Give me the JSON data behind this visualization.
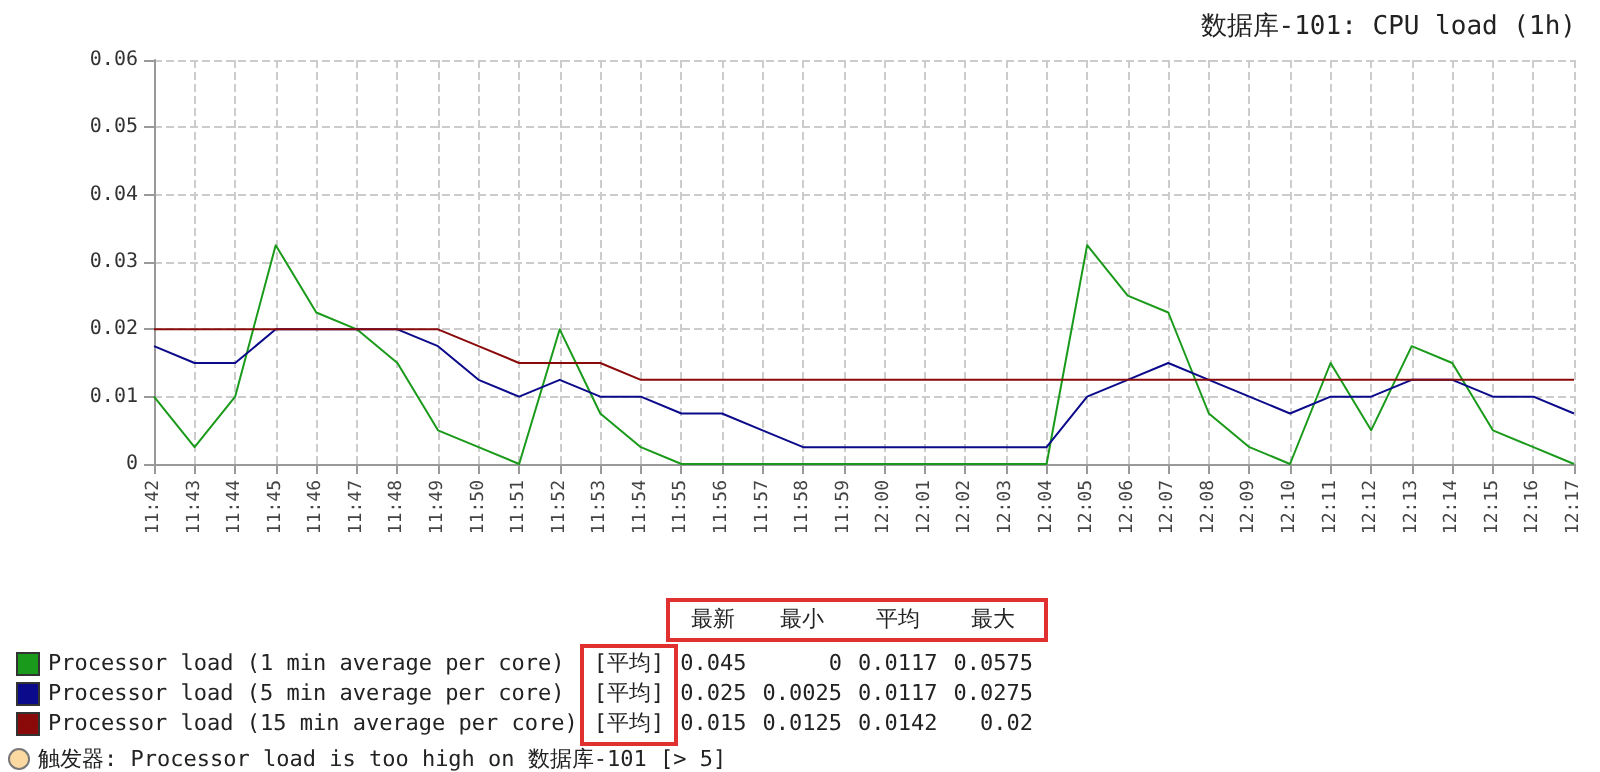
{
  "chart_data": {
    "type": "line",
    "title": "数据库-101: CPU load (1h)",
    "categories": [
      "11:42",
      "11:43",
      "11:44",
      "11:45",
      "11:46",
      "11:47",
      "11:48",
      "11:49",
      "11:50",
      "11:51",
      "11:52",
      "11:53",
      "11:54",
      "11:55",
      "11:56",
      "11:57",
      "11:58",
      "11:59",
      "12:00",
      "12:01",
      "12:02",
      "12:03",
      "12:04",
      "12:05",
      "12:06",
      "12:07",
      "12:08",
      "12:09",
      "12:10",
      "12:11",
      "12:12",
      "12:13",
      "12:14",
      "12:15",
      "12:16",
      "12:17"
    ],
    "series": [
      {
        "name": "Processor load (1 min average per core)",
        "color": "#1a9a1a",
        "values": [
          0.01,
          0.0025,
          0.01,
          0.0325,
          0.0225,
          0.02,
          0.015,
          0.005,
          0.0025,
          0,
          0.02,
          0.0075,
          0.0025,
          0,
          0,
          0,
          0,
          0,
          0,
          0,
          0,
          0,
          0,
          0.0325,
          0.025,
          0.0225,
          0.0075,
          0.0025,
          0,
          0.015,
          0.005,
          0.0175,
          0.015,
          0.005,
          0.0025,
          0
        ]
      },
      {
        "name": "Processor load (5 min average per core)",
        "color": "#0a0a8a",
        "values": [
          0.0175,
          0.015,
          0.015,
          0.02,
          0.02,
          0.02,
          0.02,
          0.0175,
          0.0125,
          0.01,
          0.0125,
          0.01,
          0.01,
          0.0075,
          0.0075,
          0.005,
          0.0025,
          0.0025,
          0.0025,
          0.0025,
          0.0025,
          0.0025,
          0.0025,
          0.01,
          0.0125,
          0.015,
          0.0125,
          0.01,
          0.0075,
          0.01,
          0.01,
          0.0125,
          0.0125,
          0.01,
          0.01,
          0.0075
        ]
      },
      {
        "name": "Processor load (15 min average per core)",
        "color": "#8a0a0a",
        "values": [
          0.02,
          0.02,
          0.02,
          0.02,
          0.02,
          0.02,
          0.02,
          0.02,
          0.0175,
          0.015,
          0.015,
          0.015,
          0.0125,
          0.0125,
          0.0125,
          0.0125,
          0.0125,
          0.0125,
          0.0125,
          0.0125,
          0.0125,
          0.0125,
          0.0125,
          0.0125,
          0.0125,
          0.0125,
          0.0125,
          0.0125,
          0.0125,
          0.0125,
          0.0125,
          0.0125,
          0.0125,
          0.0125,
          0.0125,
          0.0125
        ]
      }
    ],
    "ylim": [
      0,
      0.06
    ],
    "yticks": [
      0,
      0.01,
      0.02,
      0.03,
      0.04,
      0.05,
      0.06
    ],
    "grid": true,
    "legend": "bottom",
    "marker": "none",
    "line_style": "solid",
    "annotations": [
      "最新",
      "最小",
      "平均",
      "最大",
      "[平均]",
      "0.045",
      "0",
      "0.0117",
      "0.0575",
      "[平均]",
      "0.025",
      "0.0025",
      "0.0117",
      "0.0275",
      "[平均]",
      "0.015",
      "0.0125",
      "0.0142",
      "0.02",
      "触发器: Processor load is too high on 数据库-101   [> 5]"
    ]
  }
}
